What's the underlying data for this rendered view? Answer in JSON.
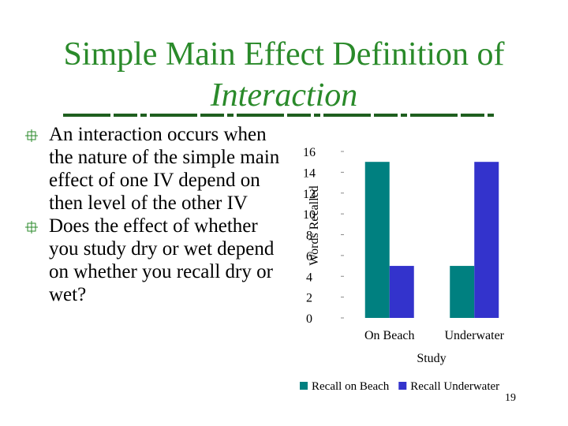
{
  "slide": {
    "title": [
      "Simple Main Effect Definition of",
      "Interaction"
    ],
    "bullets": [
      "An interaction occurs when the nature of the simple main effect of one IV depend on then level of the other IV",
      "Does the effect of whether you study dry or wet depend on whether you recall dry or wet?"
    ],
    "page_number": "19"
  },
  "chart_data": {
    "type": "bar",
    "x_label": "Study",
    "y_label": "Words Recalled",
    "categories": [
      "On Beach",
      "Underwater"
    ],
    "series": [
      {
        "name": "Recall on Beach",
        "color": "#008080",
        "values": [
          15,
          5
        ]
      },
      {
        "name": "Recall Underwater",
        "color": "#3333cc",
        "values": [
          5,
          15
        ]
      }
    ],
    "ylim": [
      0,
      16
    ],
    "yticks": [
      0,
      2,
      4,
      6,
      8,
      10,
      12,
      14,
      16
    ],
    "grid": false,
    "legend": "bottom"
  }
}
